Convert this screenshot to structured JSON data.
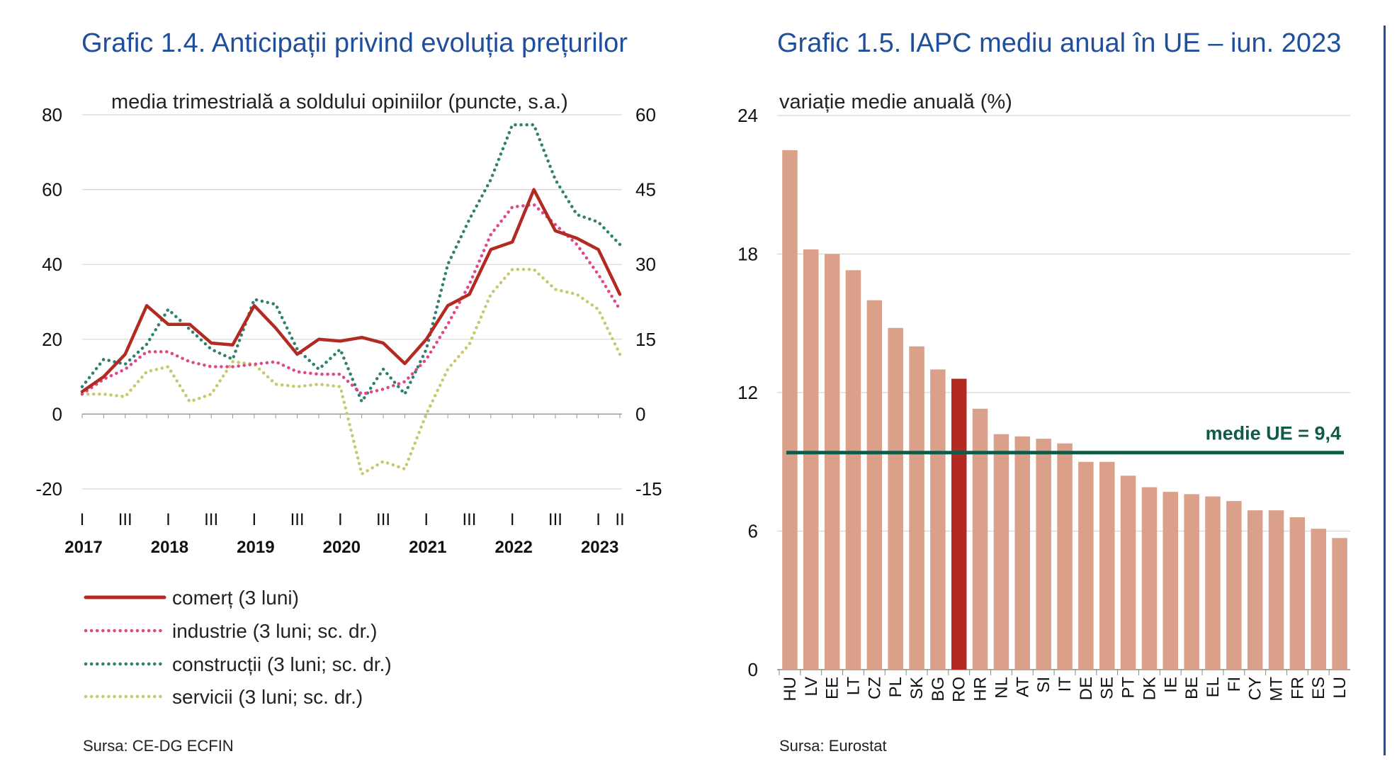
{
  "left": {
    "title": "Grafic 1.4. Anticipații privind evoluția prețurilor",
    "subtitle": "media trimestrială  a soldului opiniilor (puncte, s.a.)",
    "source": "Sursa: CE-DG ECFIN"
  },
  "right": {
    "title": "Grafic 1.5. IAPC mediu anual în UE – iun. 2023",
    "subtitle": "variație medie anuală (%)",
    "source": "Sursa: Eurostat",
    "eu_label": "medie UE = 9,4"
  },
  "chart_data": [
    {
      "type": "line",
      "y_left_ticks": [
        "80",
        "60",
        "40",
        "20",
        "0",
        "-20"
      ],
      "y_right_ticks": [
        "60",
        "45",
        "30",
        "15",
        "0",
        "-15"
      ],
      "ylim_left": [
        -20,
        80
      ],
      "ylim_right": [
        -15,
        60
      ],
      "x_quarter_labels": [
        "I",
        "III",
        "I",
        "III",
        "I",
        "III",
        "I",
        "III",
        "I",
        "III",
        "I",
        "III",
        "I",
        "II"
      ],
      "years": [
        "2017",
        "2018",
        "2019",
        "2020",
        "2021",
        "2022",
        "2023"
      ],
      "x": [
        "2017Q1",
        "2017Q2",
        "2017Q3",
        "2017Q4",
        "2018Q1",
        "2018Q2",
        "2018Q3",
        "2018Q4",
        "2019Q1",
        "2019Q2",
        "2019Q3",
        "2019Q4",
        "2020Q1",
        "2020Q2",
        "2020Q3",
        "2020Q4",
        "2021Q1",
        "2021Q2",
        "2021Q3",
        "2021Q4",
        "2022Q1",
        "2022Q2",
        "2022Q3",
        "2022Q4",
        "2023Q1",
        "2023Q2"
      ],
      "series": [
        {
          "name": "comerț (3 luni)",
          "axis": "left",
          "color": "#b22a22",
          "style": "solid",
          "values": [
            6,
            10,
            16,
            29,
            24,
            24,
            19,
            18.5,
            29,
            23,
            16,
            20,
            19.5,
            20.5,
            19,
            13.5,
            20,
            29,
            32,
            44,
            46,
            60,
            49,
            47,
            44,
            32
          ]
        },
        {
          "name": "industrie (3 luni; sc. dr.)",
          "axis": "right",
          "color": "#e0468a",
          "style": "dotted",
          "values": [
            4,
            7,
            9,
            12.5,
            12.5,
            10.5,
            9.5,
            9.5,
            10,
            10.5,
            8.5,
            8,
            8,
            4,
            5,
            6.5,
            11,
            18,
            26,
            36,
            41.5,
            42,
            38,
            34,
            28,
            21
          ]
        },
        {
          "name": "construcții (3 luni; sc. dr.)",
          "axis": "right",
          "color": "#2f8070",
          "style": "dotted",
          "values": [
            5.5,
            11,
            10,
            14,
            21,
            17,
            13,
            11,
            23,
            22,
            13,
            9,
            13,
            2.5,
            9,
            4,
            13,
            30,
            39,
            47,
            58,
            58,
            47,
            40,
            38.5,
            34
          ]
        },
        {
          "name": "servicii (3 luni; sc. dr.)",
          "axis": "right",
          "color": "#c8c86e",
          "style": "dotted",
          "values": [
            4,
            4,
            3.5,
            8.5,
            9.5,
            2.5,
            4,
            10.5,
            10,
            6,
            5.5,
            6,
            5.5,
            -12,
            -9.5,
            -11,
            0,
            9,
            14,
            24,
            29,
            29,
            25,
            24,
            21,
            12
          ]
        }
      ]
    },
    {
      "type": "bar",
      "categories": [
        "HU",
        "LV",
        "EE",
        "LT",
        "CZ",
        "PL",
        "SK",
        "BG",
        "RO",
        "HR",
        "NL",
        "AT",
        "SI",
        "IT",
        "DE",
        "SE",
        "PT",
        "DK",
        "IE",
        "BE",
        "EL",
        "FI",
        "CY",
        "MT",
        "FR",
        "ES",
        "LU"
      ],
      "values": [
        22.5,
        18.2,
        18.0,
        17.3,
        16.0,
        14.8,
        14.0,
        13.0,
        12.6,
        11.3,
        10.2,
        10.1,
        10.0,
        9.8,
        9.0,
        9.0,
        8.4,
        7.9,
        7.7,
        7.6,
        7.5,
        7.3,
        6.9,
        6.9,
        6.6,
        6.1,
        5.7
      ],
      "highlight": "RO",
      "bar_color": "#dba08a",
      "highlight_color": "#b22a22",
      "y_ticks": [
        "24",
        "18",
        "12",
        "6",
        "0"
      ],
      "ylim": [
        0,
        24
      ],
      "reference_line": 9.4,
      "reference_color": "#0f5a48"
    }
  ]
}
